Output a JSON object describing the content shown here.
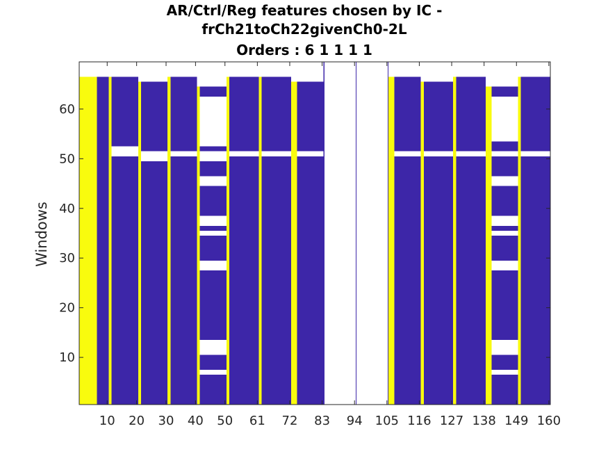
{
  "chart_data": {
    "type": "heatmap",
    "title_lines": [
      "AR/Ctrl/Reg features chosen by IC -",
      "frCh21toCh22givenCh0-2L",
      "Orders : 6 1 1 1 1"
    ],
    "xlabel": "",
    "ylabel": "Windows",
    "x_tick_labels": [
      "10",
      "20",
      "30",
      "40",
      "50",
      "61",
      "72",
      "83",
      "94",
      "105",
      "116",
      "127",
      "138",
      "149",
      "160"
    ],
    "x_tick_positions": [
      10,
      20,
      30,
      40,
      50,
      61,
      72,
      83,
      94,
      105,
      116,
      127,
      138,
      149,
      160
    ],
    "xlim": [
      0.5,
      160.5
    ],
    "y_ticks": [
      10,
      20,
      30,
      40,
      50,
      60
    ],
    "ylim": [
      0.5,
      69.5
    ],
    "windows": 66,
    "colors": {
      "selected": "#3d26a8",
      "background": "#ffffff",
      "ar_order": "#f9fb0e"
    },
    "blocks": [
      {
        "x_range": [
          0.5,
          6.5
        ],
        "color": "ar_order",
        "y_ranges": [
          [
            0.5,
            66.5
          ]
        ]
      },
      {
        "x_range": [
          6.5,
          10.5
        ],
        "color": "selected",
        "y_ranges": [
          [
            0.5,
            66.5
          ]
        ]
      },
      {
        "x_range": [
          10.5,
          11.5
        ],
        "color": "ar_order",
        "y_ranges": [
          [
            0.5,
            66.5
          ]
        ]
      },
      {
        "x_range": [
          11.5,
          20.5
        ],
        "color": "selected",
        "y_ranges": [
          [
            0.5,
            50.5
          ],
          [
            52.5,
            66.5
          ]
        ]
      },
      {
        "x_range": [
          20.5,
          21.5
        ],
        "color": "ar_order",
        "y_ranges": [
          [
            0.5,
            65.5
          ]
        ]
      },
      {
        "x_range": [
          21.5,
          30.5
        ],
        "color": "selected",
        "y_ranges": [
          [
            0.5,
            49.5
          ],
          [
            51.5,
            65.5
          ]
        ]
      },
      {
        "x_range": [
          30.5,
          31.5
        ],
        "color": "ar_order",
        "y_ranges": [
          [
            0.5,
            66.5
          ]
        ]
      },
      {
        "x_range": [
          31.5,
          40.5
        ],
        "color": "selected",
        "y_ranges": [
          [
            0.5,
            50.5
          ],
          [
            51.5,
            66.5
          ]
        ]
      },
      {
        "x_range": [
          40.5,
          41.5
        ],
        "color": "ar_order",
        "y_ranges": [
          [
            0.5,
            64.5
          ]
        ]
      },
      {
        "x_range": [
          41.5,
          50.5
        ],
        "color": "selected",
        "y_ranges": [
          [
            0.5,
            6.5
          ],
          [
            7.5,
            10.5
          ],
          [
            13.5,
            27.5
          ],
          [
            29.5,
            34.5
          ],
          [
            35.5,
            36.5
          ],
          [
            38.5,
            44.5
          ],
          [
            46.5,
            49.5
          ],
          [
            51.5,
            52.5
          ],
          [
            62.5,
            64.5
          ]
        ]
      },
      {
        "x_range": [
          50.5,
          51.5
        ],
        "color": "ar_order",
        "y_ranges": [
          [
            0.5,
            66.5
          ]
        ]
      },
      {
        "x_range": [
          51.5,
          61.5
        ],
        "color": "selected",
        "y_ranges": [
          [
            0.5,
            50.5
          ],
          [
            51.5,
            66.5
          ]
        ]
      },
      {
        "x_range": [
          61.5,
          62.5
        ],
        "color": "ar_order",
        "y_ranges": [
          [
            0.5,
            66.5
          ]
        ]
      },
      {
        "x_range": [
          62.5,
          72.5
        ],
        "color": "selected",
        "y_ranges": [
          [
            0.5,
            50.5
          ],
          [
            51.5,
            66.5
          ]
        ]
      },
      {
        "x_range": [
          72.5,
          74.5
        ],
        "color": "ar_order",
        "y_ranges": [
          [
            0.5,
            65.5
          ]
        ]
      },
      {
        "x_range": [
          74.5,
          83.5
        ],
        "color": "selected",
        "y_ranges": [
          [
            0.5,
            50.5
          ],
          [
            51.5,
            65.5
          ]
        ]
      },
      {
        "x_range": [
          83.5,
          83.75
        ],
        "color": "selected",
        "y_ranges": [
          [
            0.5,
            69.5
          ]
        ]
      },
      {
        "x_range": [
          94.4,
          94.6
        ],
        "color": "selected",
        "y_ranges": [
          [
            0.5,
            69.5
          ]
        ]
      },
      {
        "x_range": [
          105.3,
          105.5
        ],
        "color": "selected",
        "y_ranges": [
          [
            0.5,
            69.5
          ]
        ]
      },
      {
        "x_range": [
          105.5,
          107.5
        ],
        "color": "ar_order",
        "y_ranges": [
          [
            0.5,
            66.5
          ]
        ]
      },
      {
        "x_range": [
          107.5,
          116.5
        ],
        "color": "selected",
        "y_ranges": [
          [
            0.5,
            50.5
          ],
          [
            51.5,
            66.5
          ]
        ]
      },
      {
        "x_range": [
          116.5,
          117.5
        ],
        "color": "ar_order",
        "y_ranges": [
          [
            0.5,
            65.5
          ]
        ]
      },
      {
        "x_range": [
          117.5,
          127.5
        ],
        "color": "selected",
        "y_ranges": [
          [
            0.5,
            50.5
          ],
          [
            51.5,
            65.5
          ]
        ]
      },
      {
        "x_range": [
          127.5,
          128.5
        ],
        "color": "ar_order",
        "y_ranges": [
          [
            0.5,
            66.5
          ]
        ]
      },
      {
        "x_range": [
          128.5,
          138.5
        ],
        "color": "selected",
        "y_ranges": [
          [
            0.5,
            50.5
          ],
          [
            51.5,
            66.5
          ]
        ]
      },
      {
        "x_range": [
          138.5,
          140.5
        ],
        "color": "ar_order",
        "y_ranges": [
          [
            0.5,
            64.5
          ]
        ]
      },
      {
        "x_range": [
          140.5,
          149.5
        ],
        "color": "selected",
        "y_ranges": [
          [
            0.5,
            6.5
          ],
          [
            7.5,
            10.5
          ],
          [
            13.5,
            27.5
          ],
          [
            29.5,
            34.5
          ],
          [
            35.5,
            36.5
          ],
          [
            38.5,
            44.5
          ],
          [
            46.5,
            50.5
          ],
          [
            51.5,
            53.5
          ],
          [
            62.5,
            64.5
          ]
        ]
      },
      {
        "x_range": [
          149.5,
          150.5
        ],
        "color": "ar_order",
        "y_ranges": [
          [
            0.5,
            66.5
          ]
        ]
      },
      {
        "x_range": [
          150.5,
          160.5
        ],
        "color": "selected",
        "y_ranges": [
          [
            0.5,
            50.5
          ],
          [
            51.5,
            66.5
          ]
        ]
      }
    ]
  }
}
